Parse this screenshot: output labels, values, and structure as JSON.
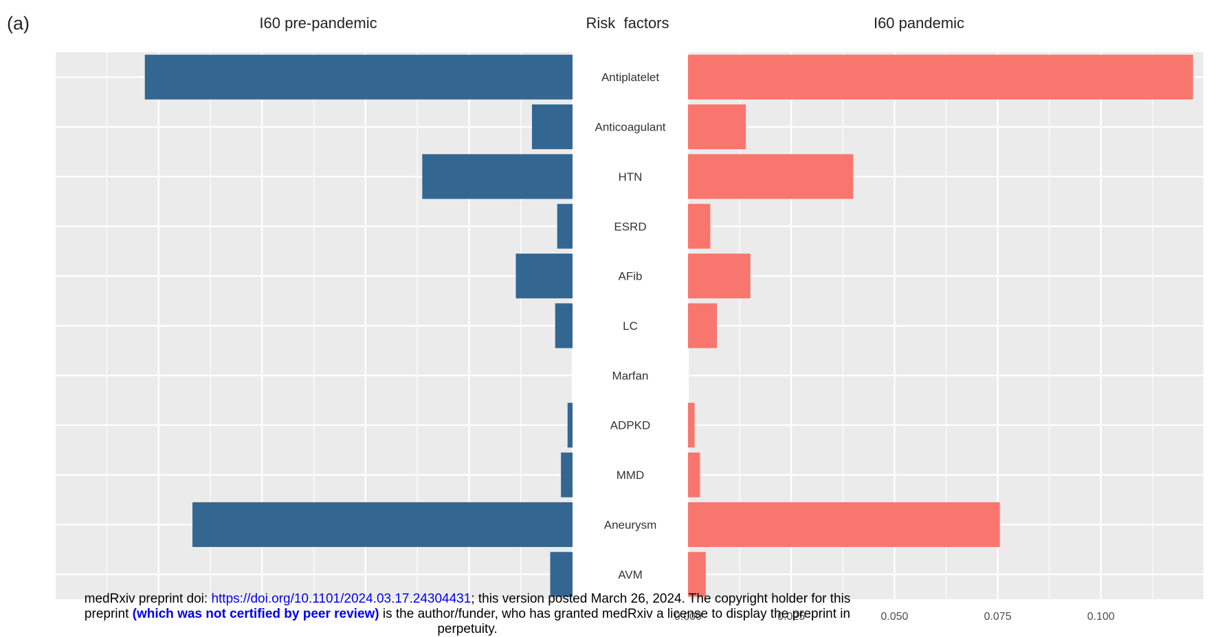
{
  "panel_label": "(a)",
  "chart_data": {
    "type": "bar",
    "title": "Risk  factors",
    "categories": [
      "Antiplatelet",
      "Anticoagulant",
      "HTN",
      "ESRD",
      "AFib",
      "LC",
      "Marfan",
      "ADPKD",
      "MMD",
      "Aneurysm",
      "AVM"
    ],
    "series": [
      {
        "name": "I60 pre-pandemic",
        "color": "#336791",
        "values": [
          0.1033,
          0.0098,
          0.0363,
          0.0037,
          0.0137,
          0.0042,
          0.0,
          0.0012,
          0.0028,
          0.0918,
          0.0054
        ]
      },
      {
        "name": "I60 pandemic",
        "color": "#f8766d",
        "values": [
          0.1223,
          0.014,
          0.04,
          0.0054,
          0.0151,
          0.007,
          0.0,
          0.0016,
          0.0029,
          0.0755,
          0.0043
        ]
      }
    ],
    "left_xlim": [
      0,
      0.125
    ],
    "right_xlim": [
      0,
      0.125
    ],
    "right_ticks": [
      "0.000",
      "0.025",
      "0.050",
      "0.075",
      "0.100"
    ],
    "right_tick_values": [
      0,
      0.025,
      0.05,
      0.075,
      0.1
    ],
    "left_tick_values": [
      0,
      0.025,
      0.05,
      0.075,
      0.1
    ],
    "grid": true,
    "panel_background": "#ebebeb",
    "grid_color": "#ffffff"
  },
  "footer": {
    "line1_prefix": "medRxiv preprint doi: ",
    "line1_link": "https://doi.org/10.1101/2024.03.17.24304431",
    "line1_suffix": "; this version posted March 26, 2024. The copyright holder for this",
    "line2_prefix": "preprint ",
    "line2_bold": "(which was not certified by peer review)",
    "line2_suffix": " is the author/funder, who has granted medRxiv a license to display the preprint in",
    "line3": "perpetuity."
  }
}
